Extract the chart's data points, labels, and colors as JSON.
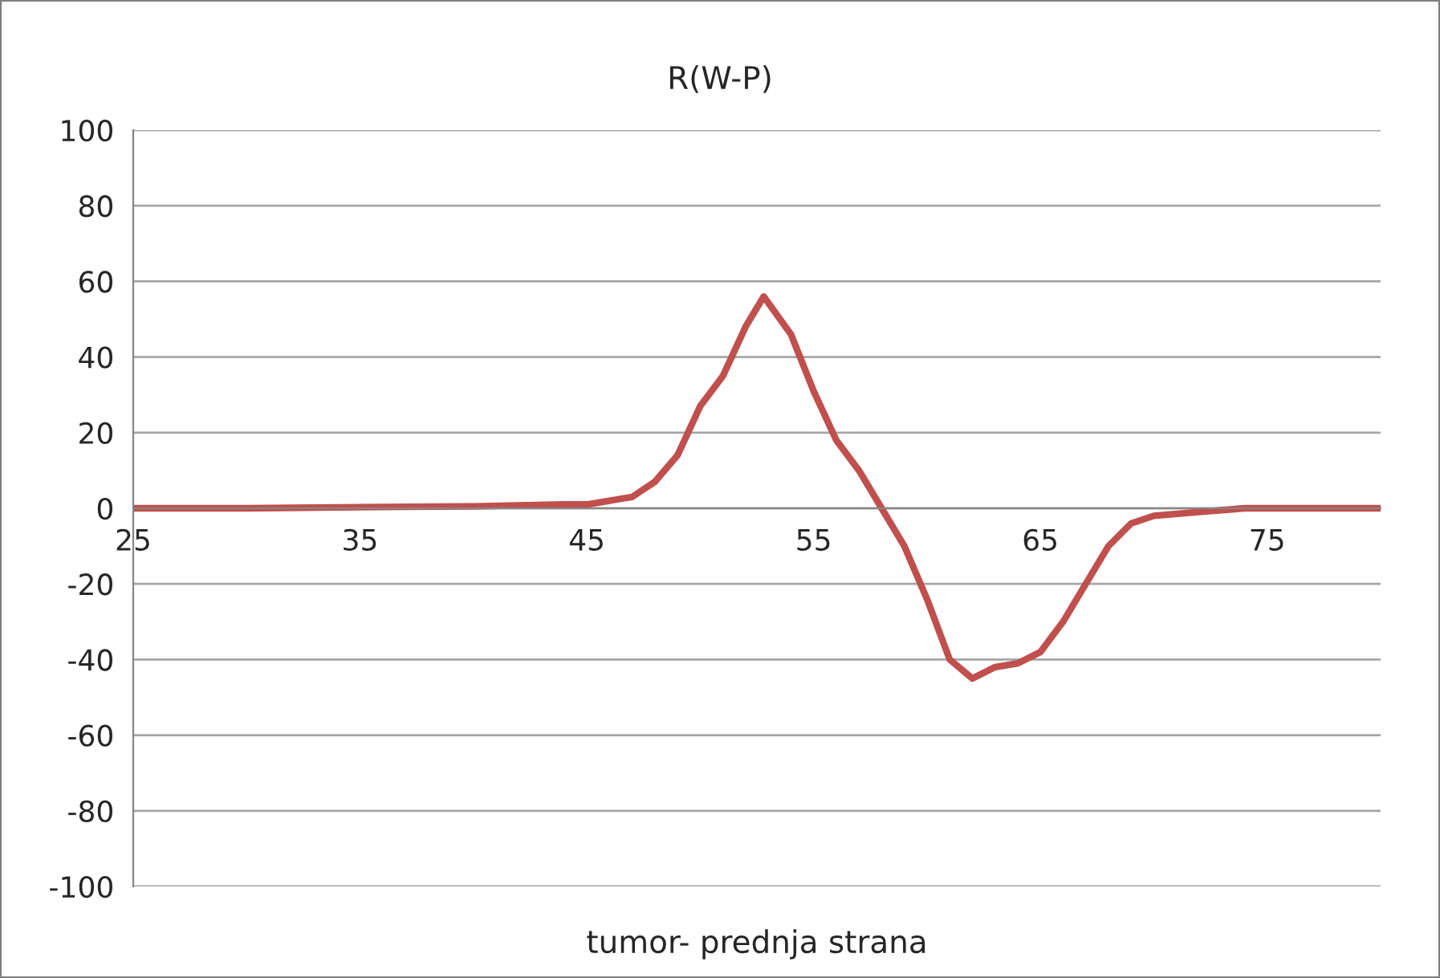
{
  "chart_data": {
    "type": "line",
    "title": "R(W-P)",
    "xlabel": "tumor- prednja strana",
    "x": [
      25,
      30,
      35,
      40,
      44,
      45,
      46,
      47,
      48,
      49,
      50,
      51,
      52,
      52.8,
      54,
      55,
      56,
      57,
      58,
      59,
      60,
      61,
      62,
      63,
      64,
      65,
      66,
      67,
      68,
      69,
      70,
      72,
      74,
      77,
      80
    ],
    "series": [
      {
        "color": "#c0504d",
        "values": [
          0,
          0,
          0.3,
          0.5,
          1,
          1,
          2,
          3,
          7,
          14,
          27,
          35,
          48,
          56,
          46,
          31,
          18,
          10,
          0,
          -10,
          -24,
          -40,
          -45,
          -42,
          -41,
          -38,
          -30,
          -20,
          -10,
          -4,
          -2,
          -1,
          0,
          0,
          0
        ]
      }
    ],
    "xlim": [
      25,
      80
    ],
    "xticks": [
      25,
      35,
      45,
      55,
      65,
      75
    ],
    "ylim": [
      -100,
      100
    ],
    "yticks": [
      -100,
      -80,
      -60,
      -40,
      -20,
      0,
      20,
      40,
      60,
      80,
      100
    ],
    "grid": "y",
    "marker": "none",
    "line_style": "solid"
  }
}
